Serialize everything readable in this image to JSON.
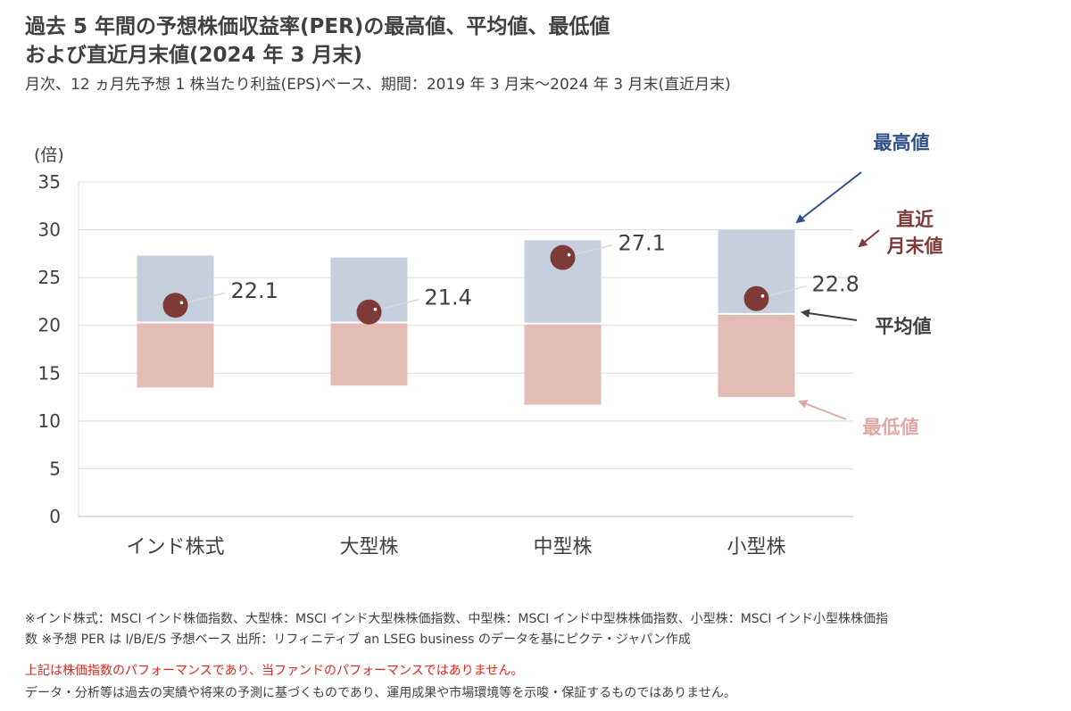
{
  "header": {
    "title_line1": "過去 5 年間の予想株価収益率(PER)の最高値、平均値、最低値",
    "title_line2": "および直近月末値(2024 年 3 月末)",
    "subtitle": "月次、12 ヵ月先予想 1 株当たり利益(EPS)ベース、期間：2019 年 3 月末～2024 年 3 月末(直近月末)"
  },
  "chart_data": {
    "type": "bar",
    "y_unit_label": "(倍)",
    "ylim": [
      0,
      35
    ],
    "yticks": [
      0,
      5,
      10,
      15,
      20,
      25,
      30,
      35
    ],
    "grid": true,
    "categories": [
      "インド株式",
      "大型株",
      "中型株",
      "小型株"
    ],
    "series": [
      {
        "name": "最高値",
        "values": [
          27.3,
          27.1,
          28.9,
          30.0
        ]
      },
      {
        "name": "平均値",
        "values": [
          20.3,
          20.3,
          20.2,
          21.2
        ]
      },
      {
        "name": "最低値",
        "values": [
          13.5,
          13.7,
          11.7,
          12.5
        ]
      },
      {
        "name": "直近月末値",
        "values": [
          22.1,
          21.4,
          27.1,
          22.8
        ]
      }
    ],
    "value_labels": [
      "22.1",
      "21.4",
      "27.1",
      "22.8"
    ],
    "legend": {
      "max": "最高値",
      "latest_line1": "直近",
      "latest_line2": "月末値",
      "avg": "平均値",
      "min": "最低値"
    },
    "colors": {
      "upper_band": "#c5cfdd",
      "lower_band": "#e3bcb5",
      "marker": "#7d3a36",
      "max_label": "#2f4f8a",
      "latest_label": "#7d3a36",
      "avg_label": "#404040",
      "min_label": "#dfa8a1",
      "axis_text": "#404040",
      "grid": "#d9d9d9"
    }
  },
  "footer": {
    "note_line1": "※インド株式：MSCI インド株価指数、大型株：MSCI インド大型株株価指数、中型株：MSCI インド中型株株価指数、小型株：MSCI インド小型株株価指",
    "note_line2": "数 ※予想 PER は I/B/E/S 予想ベース 出所：リフィニティブ an LSEG business のデータを基にピクテ・ジャパン作成",
    "disclaimer_red": "上記は株価指数のパフォーマンスであり、当ファンドのパフォーマンスではありません。",
    "disclaimer": "データ・分析等は過去の実績や将来の予測に基づくものであり、運用成果や市場環境等を示唆・保証するものではありません。"
  }
}
